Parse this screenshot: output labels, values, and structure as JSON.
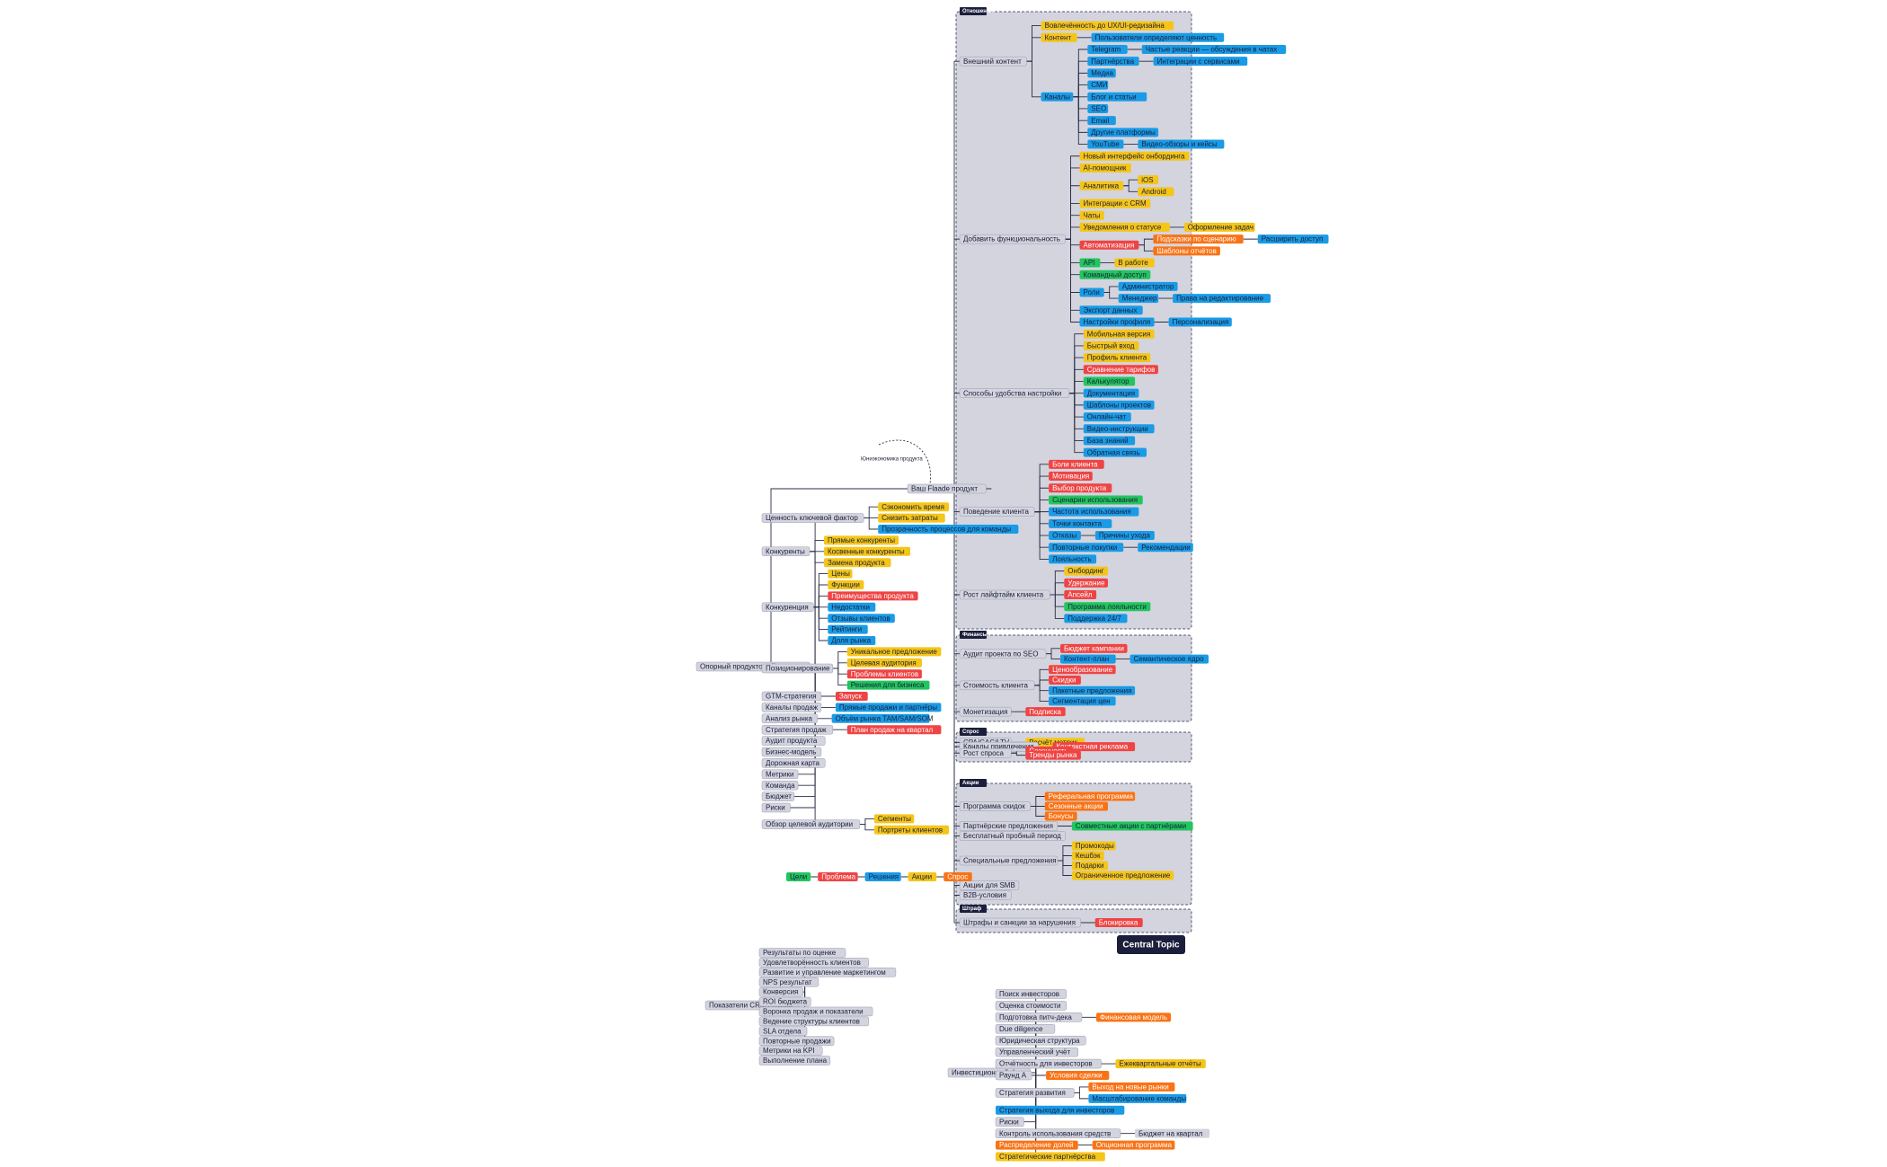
{
  "central_topic": "Central Topic",
  "root": {
    "label": "Ваш Flaade продукт",
    "note": "Юниэкономика продукта"
  },
  "right_groups": [
    {
      "title": "Отношения",
      "branches": [
        {
          "label": "Внешний контент",
          "children": [
            {
              "label": "Вовлечённость до UX/UI-редизайна",
              "color": "#f5c518"
            },
            {
              "label": "Контент",
              "color": "#f5c518",
              "children": [
                {
                  "label": "Пользователи определяют ценность",
                  "color": "#1a9be6"
                }
              ]
            },
            {
              "label": "Каналы",
              "color": "#1a9be6",
              "children": [
                {
                  "label": "Telegram",
                  "color": "#1a9be6",
                  "children": [
                    {
                      "label": "Частые реакции — обсуждения в чатах",
                      "color": "#1a9be6"
                    }
                  ]
                },
                {
                  "label": "Партнёрства",
                  "color": "#1a9be6",
                  "children": [
                    {
                      "label": "Интеграции с сервисами",
                      "color": "#1a9be6"
                    }
                  ]
                },
                {
                  "label": "Медиа",
                  "color": "#1a9be6"
                },
                {
                  "label": "СМИ",
                  "color": "#1a9be6"
                },
                {
                  "label": "Блог и статьи",
                  "color": "#1a9be6"
                },
                {
                  "label": "SEO",
                  "color": "#1a9be6"
                },
                {
                  "label": "Email",
                  "color": "#1a9be6"
                },
                {
                  "label": "Другие платформы",
                  "color": "#1a9be6"
                },
                {
                  "label": "YouTube",
                  "color": "#1a9be6",
                  "children": [
                    {
                      "label": "Видео-обзоры и кейсы",
                      "color": "#1a9be6"
                    }
                  ]
                }
              ]
            }
          ]
        },
        {
          "label": "Добавить функциональность",
          "children": [
            {
              "label": "Новый интерфейс онбординга",
              "color": "#f5c518"
            },
            {
              "label": "AI-помощник",
              "color": "#f5c518"
            },
            {
              "label": "Аналитика",
              "color": "#f5c518",
              "children": [
                {
                  "label": "iOS",
                  "color": "#f5c518"
                },
                {
                  "label": "Android",
                  "color": "#f5c518"
                }
              ]
            },
            {
              "label": "Интеграции с CRM",
              "color": "#f5c518"
            },
            {
              "label": "Чаты",
              "color": "#f5c518"
            },
            {
              "label": "Уведомления о статусе",
              "color": "#f5c518",
              "children": [
                {
                  "label": "Оформление задач",
                  "color": "#f5c518"
                }
              ]
            },
            {
              "label": "Автоматизация",
              "color": "#ef4444",
              "children": [
                {
                  "label": "Подсказки по сценарию",
                  "color": "#f97316",
                  "children": [
                    {
                      "label": "Расширить доступ",
                      "color": "#1a9be6"
                    }
                  ]
                },
                {
                  "label": "Шаблоны отчётов",
                  "color": "#f97316"
                }
              ]
            },
            {
              "label": "API",
              "color": "#22c55e",
              "children": [
                {
                  "label": "В работе",
                  "color": "#f5c518"
                }
              ]
            },
            {
              "label": "Командный доступ",
              "color": "#22c55e"
            },
            {
              "label": "Роли",
              "color": "#1a9be6",
              "children": [
                {
                  "label": "Администратор",
                  "color": "#1a9be6"
                },
                {
                  "label": "Менеджер",
                  "color": "#1a9be6",
                  "children": [
                    {
                      "label": "Права на редактирование",
                      "color": "#1a9be6"
                    }
                  ]
                }
              ]
            },
            {
              "label": "Экспорт данных",
              "color": "#1a9be6"
            },
            {
              "label": "Настройки профиля",
              "color": "#1a9be6",
              "children": [
                {
                  "label": "Персонализация",
                  "color": "#1a9be6"
                }
              ]
            }
          ]
        },
        {
          "label": "Способы удобства настройки",
          "children": [
            {
              "label": "Мобильная версия",
              "color": "#f5c518"
            },
            {
              "label": "Быстрый вход",
              "color": "#f5c518"
            },
            {
              "label": "Профиль клиента",
              "color": "#f5c518"
            },
            {
              "label": "Сравнение тарифов",
              "color": "#ef4444"
            },
            {
              "label": "Калькулятор",
              "color": "#22c55e"
            },
            {
              "label": "Документация",
              "color": "#1a9be6"
            },
            {
              "label": "Шаблоны проектов",
              "color": "#1a9be6"
            },
            {
              "label": "Онлайн-чат",
              "color": "#1a9be6"
            },
            {
              "label": "Видео-инструкции",
              "color": "#1a9be6"
            },
            {
              "label": "База знаний",
              "color": "#1a9be6"
            },
            {
              "label": "Обратная связь",
              "color": "#1a9be6"
            }
          ]
        },
        {
          "label": "Поведение клиента",
          "children": [
            {
              "label": "Боли клиента",
              "color": "#ef4444"
            },
            {
              "label": "Мотивация",
              "color": "#ef4444"
            },
            {
              "label": "Выбор продукта",
              "color": "#ef4444"
            },
            {
              "label": "Сценарии использования",
              "color": "#22c55e"
            },
            {
              "label": "Частота использования",
              "color": "#1a9be6"
            },
            {
              "label": "Точки контакта",
              "color": "#1a9be6"
            },
            {
              "label": "Отказы",
              "color": "#1a9be6",
              "children": [
                {
                  "label": "Причины ухода",
                  "color": "#1a9be6"
                }
              ]
            },
            {
              "label": "Повторные покупки",
              "color": "#1a9be6",
              "children": [
                {
                  "label": "Рекомендации",
                  "color": "#1a9be6"
                }
              ]
            },
            {
              "label": "Лояльность",
              "color": "#1a9be6"
            }
          ]
        },
        {
          "label": "Рост лайфтайм клиента",
          "children": [
            {
              "label": "Онбординг",
              "color": "#f5c518"
            },
            {
              "label": "Удержание",
              "color": "#ef4444"
            },
            {
              "label": "Апсейл",
              "color": "#ef4444"
            },
            {
              "label": "Программа лояльности",
              "color": "#22c55e"
            },
            {
              "label": "Поддержка 24/7",
              "color": "#1a9be6"
            }
          ]
        }
      ]
    },
    {
      "title": "Финансы",
      "branches": [
        {
          "label": "Аудит проекта по SEO",
          "children": [
            {
              "label": "Бюджет кампании",
              "color": "#ef4444"
            },
            {
              "label": "Контент-план",
              "color": "#1a9be6",
              "children": [
                {
                  "label": "Семантическое ядро",
                  "color": "#1a9be6"
                }
              ]
            }
          ]
        },
        {
          "label": "Стоимость клиента",
          "children": [
            {
              "label": "Ценообразование",
              "color": "#ef4444"
            },
            {
              "label": "Скидки",
              "color": "#ef4444"
            },
            {
              "label": "Пакетные предложения",
              "color": "#1a9be6"
            },
            {
              "label": "Сегментация цен",
              "color": "#1a9be6"
            }
          ]
        },
        {
          "label": "Монетизация",
          "children": [
            {
              "label": "Подписка",
              "color": "#ef4444"
            }
          ]
        }
      ]
    },
    {
      "title": "Спрос",
      "branches": [
        {
          "label": "CPA/CAC/LTV",
          "children": [
            {
              "label": "Расчёт метрик",
              "color": "#f5c518"
            }
          ]
        },
        {
          "label": "Каналы привлечения",
          "children": [
            {
              "label": "Контекстная реклама",
              "color": "#ef4444"
            }
          ]
        },
        {
          "label": "Рост спроса",
          "children": [
            {
              "label": "Сезонность",
              "color": "#ef4444"
            },
            {
              "label": "Тренды рынка",
              "color": "#ef4444"
            }
          ]
        }
      ]
    },
    {
      "title": "Акции",
      "branches": [
        {
          "label": "Программа скидок",
          "children": [
            {
              "label": "Реферальная программа",
              "color": "#f97316"
            },
            {
              "label": "Сезонные акции",
              "color": "#f97316"
            },
            {
              "label": "Бонусы",
              "color": "#f97316"
            }
          ]
        },
        {
          "label": "Партнёрские предложения",
          "children": [
            {
              "label": "Совместные акции с партнёрами",
              "color": "#22c55e"
            }
          ]
        },
        {
          "label": "Бесплатный пробный период"
        },
        {
          "label": "Специальные предложения",
          "children": [
            {
              "label": "Промокоды",
              "color": "#f5c518"
            },
            {
              "label": "Кешбэк",
              "color": "#f5c518"
            },
            {
              "label": "Подарки",
              "color": "#f5c518"
            },
            {
              "label": "Ограниченное предложение",
              "color": "#f5c518"
            }
          ]
        },
        {
          "label": "Акции для SMB"
        },
        {
          "label": "B2B-условия"
        }
      ]
    },
    {
      "title": "Штраф",
      "branches": [
        {
          "label": "Штрафы и санкции за нарушения",
          "children": [
            {
              "label": "Блокировка",
              "color": "#ef4444"
            }
          ]
        }
      ]
    }
  ],
  "left_tree": {
    "label": "Опорный продуктовый продукт",
    "children": [
      {
        "label": "Ценность ключевой фактор",
        "children": [
          {
            "label": "Сэкономить время",
            "color": "#f5c518"
          },
          {
            "label": "Снизить затраты",
            "color": "#f5c518"
          },
          {
            "label": "Прозрачность процессов для команды",
            "color": "#1a9be6"
          }
        ]
      },
      {
        "label": "Конкуренты",
        "children": [
          {
            "label": "Прямые конкуренты",
            "color": "#f5c518"
          },
          {
            "label": "Косвенные конкуренты",
            "color": "#f5c518"
          },
          {
            "label": "Замена продукта",
            "color": "#f5c518"
          }
        ]
      },
      {
        "label": "Конкуренция",
        "children": [
          {
            "label": "Цены",
            "color": "#f5c518"
          },
          {
            "label": "Функции",
            "color": "#f5c518"
          },
          {
            "label": "Преимущества продукта",
            "color": "#ef4444"
          },
          {
            "label": "Недостатки",
            "color": "#1a9be6"
          },
          {
            "label": "Отзывы клиентов",
            "color": "#1a9be6"
          },
          {
            "label": "Рейтинги",
            "color": "#1a9be6"
          },
          {
            "label": "Доля рынка",
            "color": "#1a9be6"
          }
        ]
      },
      {
        "label": "Позиционирование",
        "children": [
          {
            "label": "Уникальное предложение",
            "color": "#f5c518"
          },
          {
            "label": "Целевая аудитория",
            "color": "#f5c518"
          },
          {
            "label": "Проблемы клиентов",
            "color": "#ef4444"
          },
          {
            "label": "Решения для бизнеса",
            "color": "#22c55e"
          }
        ]
      },
      {
        "label": "GTM-стратегия",
        "children": [
          {
            "label": "Запуск",
            "color": "#ef4444"
          }
        ]
      },
      {
        "label": "Каналы продаж",
        "children": [
          {
            "label": "Прямые продажи и партнёры",
            "color": "#1a9be6"
          }
        ]
      },
      {
        "label": "Анализ рынка",
        "children": [
          {
            "label": "Объём рынка TAM/SAM/SOM",
            "color": "#1a9be6"
          }
        ]
      },
      {
        "label": "Стратегия продаж",
        "children": [
          {
            "label": "План продаж на квартал",
            "color": "#ef4444"
          }
        ]
      },
      {
        "label": "Аудит продукта"
      },
      {
        "label": "Бизнес-модель"
      },
      {
        "label": "Дорожная карта"
      },
      {
        "label": "Метрики"
      },
      {
        "label": "Команда"
      },
      {
        "label": "Бюджет"
      },
      {
        "label": "Риски"
      },
      {
        "label": "Обзор целевой аудитории",
        "children": [
          {
            "label": "Сегменты",
            "color": "#f5c518"
          },
          {
            "label": "Портреты клиентов",
            "color": "#f5c518"
          }
        ]
      }
    ]
  },
  "metrics_tree": {
    "label": "Показатели CRM / Пульс",
    "children": [
      {
        "label": "Результаты по оценке"
      },
      {
        "label": "Удовлетворённость клиентов"
      },
      {
        "label": "Развитие и управление маркетингом"
      },
      {
        "label": "NPS результат"
      },
      {
        "label": "Конверсия"
      },
      {
        "label": "ROI бюджета"
      },
      {
        "label": "Воронка продаж и показатели"
      },
      {
        "label": "Ведение структуры клиентов"
      },
      {
        "label": "SLA отдела"
      },
      {
        "label": "Повторные продажи"
      },
      {
        "label": "Метрики на KPI"
      },
      {
        "label": "Выполнение плана"
      }
    ]
  },
  "fund_tree": {
    "label": "Инвестиционный фонд",
    "children": [
      {
        "label": "Поиск инвесторов"
      },
      {
        "label": "Оценка стоимости"
      },
      {
        "label": "Подготовка питч-дека",
        "children": [
          {
            "label": "Финансовая модель",
            "color": "#f97316"
          }
        ]
      },
      {
        "label": "Due diligence"
      },
      {
        "label": "Юридическая структура"
      },
      {
        "label": "Управленческий учёт"
      },
      {
        "label": "Отчётность для инвесторов",
        "children": [
          {
            "label": "Ежеквартальные отчёты",
            "color": "#f5c518"
          }
        ]
      },
      {
        "label": "Раунд A",
        "children": [
          {
            "label": "Условия сделки",
            "color": "#f97316"
          }
        ]
      },
      {
        "label": "Стратегия развития",
        "children": [
          {
            "label": "Выход на новые рынки",
            "color": "#f97316"
          },
          {
            "label": "Масштабирование команды",
            "color": "#1a9be6"
          }
        ]
      },
      {
        "label": "Стратегия выхода для инвесторов",
        "color": "#1a9be6"
      },
      {
        "label": "Риски"
      },
      {
        "label": "Контроль использования средств",
        "children": [
          {
            "label": "Бюджет на квартал",
            "color": "#d3d4de"
          }
        ]
      },
      {
        "label": "Распределение долей",
        "color": "#f97316",
        "children": [
          {
            "label": "Опционная программа",
            "color": "#f97316"
          }
        ]
      },
      {
        "label": "Стратегические партнёрства",
        "color": "#f5c518"
      }
    ]
  },
  "legend": [
    {
      "label": "Цели",
      "color": "#22c55e"
    },
    {
      "label": "Проблема",
      "color": "#ef4444"
    },
    {
      "label": "Решения",
      "color": "#1a9be6"
    },
    {
      "label": "Акции",
      "color": "#f5c518"
    },
    {
      "label": "Спрос",
      "color": "#f97316"
    }
  ]
}
